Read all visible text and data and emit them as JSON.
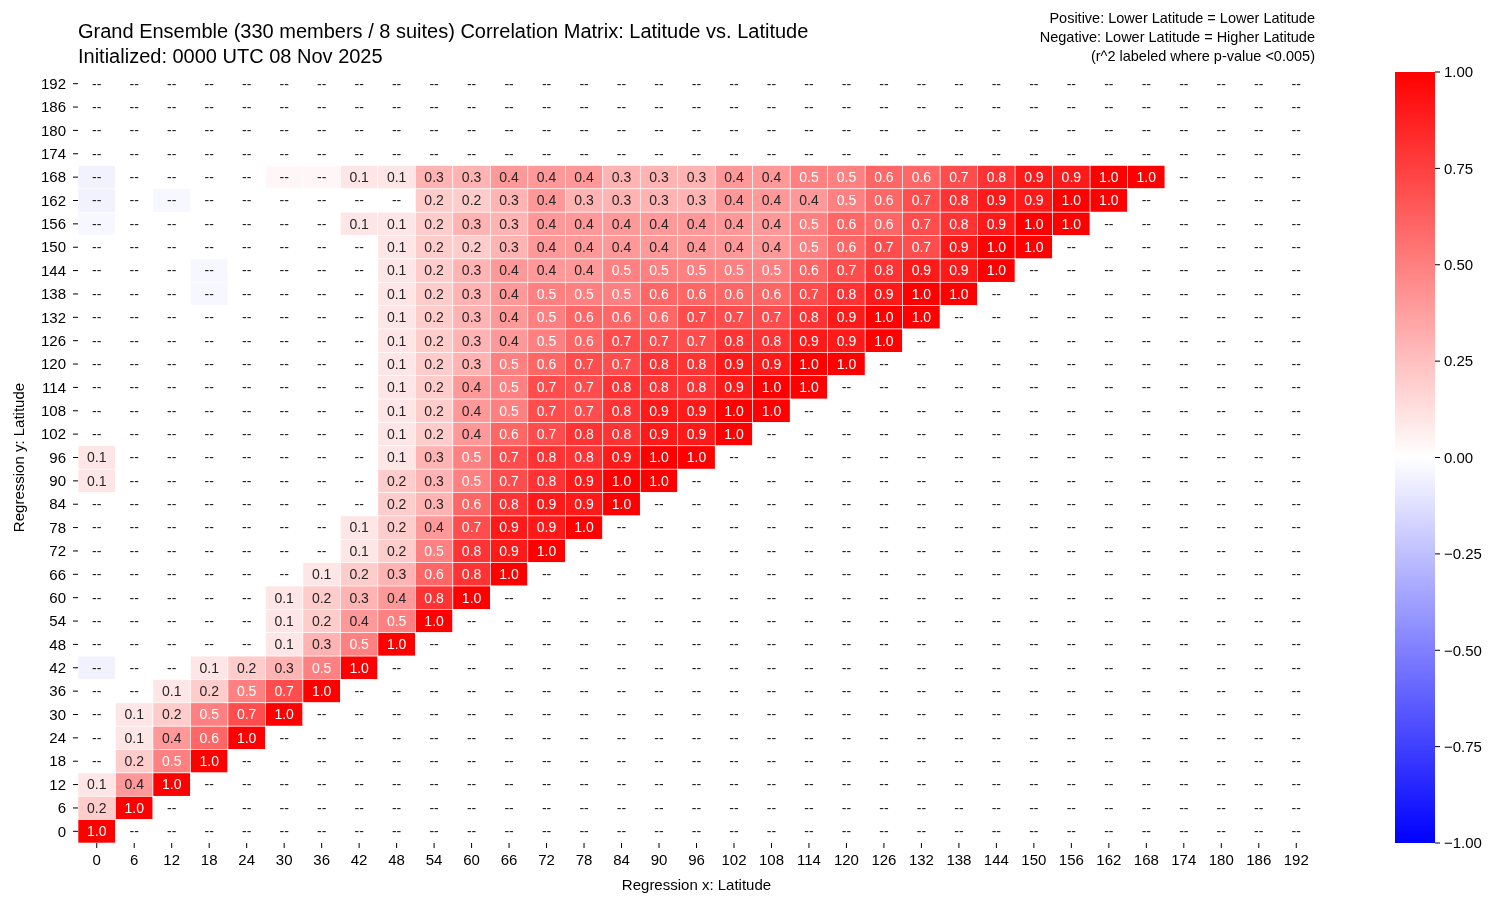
{
  "chart_data": {
    "type": "heatmap",
    "title": "Grand Ensemble (330 members / 8 suites) Correlation Matrix: Latitude vs. Latitude",
    "subtitle": "Initialized: 0000 UTC 08 Nov 2025",
    "annotations": [
      "Positive: Lower Latitude = Lower Latitude",
      "Negative: Lower Latitude = Higher Latitude",
      "(r^2 labeled where p-value <0.005)"
    ],
    "xlabel": "Regression x: Latitude",
    "ylabel": "Regression y: Latitude",
    "categories": [
      "0",
      "6",
      "12",
      "18",
      "24",
      "30",
      "36",
      "42",
      "48",
      "54",
      "60",
      "66",
      "72",
      "78",
      "84",
      "90",
      "96",
      "102",
      "108",
      "114",
      "120",
      "126",
      "132",
      "138",
      "144",
      "150",
      "156",
      "162",
      "168",
      "174",
      "180",
      "186",
      "192"
    ],
    "y_categories": [
      "192",
      "186",
      "180",
      "174",
      "168",
      "162",
      "156",
      "150",
      "144",
      "138",
      "132",
      "126",
      "120",
      "114",
      "108",
      "102",
      "96",
      "90",
      "84",
      "78",
      "72",
      "66",
      "60",
      "54",
      "48",
      "42",
      "36",
      "30",
      "24",
      "18",
      "12",
      "6",
      "0"
    ],
    "clim": [
      -1,
      1
    ],
    "cticks": [
      {
        "value": -1,
        "label": "−1.00"
      },
      {
        "value": -0.75,
        "label": "−0.75"
      },
      {
        "value": -0.5,
        "label": "−0.50"
      },
      {
        "value": -0.25,
        "label": "−0.25"
      },
      {
        "value": 0,
        "label": "0.00"
      },
      {
        "value": 0.25,
        "label": "0.25"
      },
      {
        "value": 0.5,
        "label": "0.50"
      },
      {
        "value": 0.75,
        "label": "0.75"
      },
      {
        "value": 1,
        "label": "1.00"
      }
    ],
    "cells": [
      [
        0,
        0,
        0,
        0,
        0,
        0,
        0,
        0,
        0,
        0,
        0,
        0,
        0,
        0,
        0,
        0,
        0,
        0,
        0,
        0,
        0,
        0,
        0,
        0,
        0,
        0,
        0,
        0,
        0,
        0,
        0,
        0,
        0
      ],
      [
        0,
        0,
        0,
        0,
        0,
        0,
        0,
        0,
        0,
        0,
        0,
        0,
        0,
        0,
        0,
        0,
        0,
        0,
        0,
        0,
        0,
        0,
        0,
        0,
        0,
        0,
        0,
        0,
        0,
        0,
        0,
        0,
        0
      ],
      [
        0,
        0,
        0,
        0,
        0,
        0,
        0,
        0,
        0,
        0,
        0,
        0,
        0,
        0,
        0,
        0,
        0,
        0,
        0,
        0,
        0,
        0,
        0,
        0,
        0,
        0,
        0,
        0,
        0,
        0,
        0,
        0,
        0
      ],
      [
        0,
        0,
        0,
        0,
        0,
        0,
        0,
        0,
        0,
        0,
        0,
        0,
        0,
        0,
        0,
        0,
        0,
        0,
        0,
        0,
        0,
        0,
        0,
        0,
        0,
        0,
        0,
        0,
        0,
        0,
        0,
        0,
        0
      ],
      [
        -0.05,
        0,
        0,
        0,
        0,
        0.03,
        0.03,
        0.1,
        0.1,
        0.3,
        0.3,
        0.4,
        0.4,
        0.4,
        0.3,
        0.3,
        0.3,
        0.4,
        0.4,
        0.5,
        0.5,
        0.6,
        0.6,
        0.7,
        0.8,
        0.9,
        0.9,
        1.0,
        1.0,
        0,
        0,
        0,
        0
      ],
      [
        -0.05,
        0,
        -0.03,
        0,
        0,
        0,
        0,
        0,
        0,
        0.2,
        0.2,
        0.3,
        0.4,
        0.3,
        0.3,
        0.3,
        0.3,
        0.4,
        0.4,
        0.4,
        0.5,
        0.6,
        0.7,
        0.8,
        0.9,
        0.9,
        1.0,
        1.0,
        0,
        0,
        0,
        0,
        0
      ],
      [
        -0.03,
        0,
        0,
        0,
        0,
        0,
        0,
        0.1,
        0.1,
        0.2,
        0.3,
        0.3,
        0.4,
        0.4,
        0.4,
        0.4,
        0.4,
        0.4,
        0.4,
        0.5,
        0.6,
        0.6,
        0.7,
        0.8,
        0.9,
        1.0,
        1.0,
        0,
        0,
        0,
        0,
        0,
        0
      ],
      [
        0,
        0,
        0,
        0,
        0,
        0,
        0,
        0,
        0.1,
        0.2,
        0.2,
        0.3,
        0.4,
        0.4,
        0.4,
        0.4,
        0.4,
        0.4,
        0.4,
        0.5,
        0.6,
        0.7,
        0.7,
        0.9,
        1.0,
        1.0,
        0,
        0,
        0,
        0,
        0,
        0,
        0
      ],
      [
        0,
        0,
        0,
        -0.03,
        0,
        0,
        0,
        0,
        0.1,
        0.2,
        0.3,
        0.4,
        0.4,
        0.4,
        0.5,
        0.5,
        0.5,
        0.5,
        0.5,
        0.6,
        0.7,
        0.8,
        0.9,
        0.9,
        1.0,
        0,
        0,
        0,
        0,
        0,
        0,
        0,
        0
      ],
      [
        0,
        0,
        0,
        -0.03,
        0,
        0,
        0,
        0,
        0.1,
        0.2,
        0.3,
        0.4,
        0.5,
        0.5,
        0.5,
        0.6,
        0.6,
        0.6,
        0.6,
        0.7,
        0.8,
        0.9,
        1.0,
        1.0,
        0,
        0,
        0,
        0,
        0,
        0,
        0,
        0,
        0
      ],
      [
        0,
        0,
        0,
        0,
        0,
        0,
        0,
        0,
        0.1,
        0.2,
        0.3,
        0.4,
        0.5,
        0.6,
        0.6,
        0.6,
        0.7,
        0.7,
        0.7,
        0.8,
        0.9,
        1.0,
        1.0,
        0,
        0,
        0,
        0,
        0,
        0,
        0,
        0,
        0,
        0
      ],
      [
        0,
        0,
        0,
        0,
        0,
        0,
        0,
        0,
        0.1,
        0.2,
        0.3,
        0.4,
        0.5,
        0.6,
        0.7,
        0.7,
        0.7,
        0.8,
        0.8,
        0.9,
        0.9,
        1.0,
        0,
        0,
        0,
        0,
        0,
        0,
        0,
        0,
        0,
        0,
        0
      ],
      [
        0,
        0,
        0,
        0,
        0,
        0,
        0,
        0,
        0.1,
        0.2,
        0.3,
        0.5,
        0.6,
        0.7,
        0.7,
        0.8,
        0.8,
        0.9,
        0.9,
        1.0,
        1.0,
        0,
        0,
        0,
        0,
        0,
        0,
        0,
        0,
        0,
        0,
        0,
        0
      ],
      [
        0,
        0,
        0,
        0,
        0,
        0,
        0,
        0,
        0.1,
        0.2,
        0.4,
        0.5,
        0.7,
        0.7,
        0.8,
        0.8,
        0.8,
        0.9,
        1.0,
        1.0,
        0,
        0,
        0,
        0,
        0,
        0,
        0,
        0,
        0,
        0,
        0,
        0,
        0
      ],
      [
        0,
        0,
        0,
        0,
        0,
        0,
        0,
        0,
        0.1,
        0.2,
        0.4,
        0.5,
        0.7,
        0.7,
        0.8,
        0.9,
        0.9,
        1.0,
        1.0,
        0,
        0,
        0,
        0,
        0,
        0,
        0,
        0,
        0,
        0,
        0,
        0,
        0,
        0
      ],
      [
        0,
        0,
        0,
        0,
        0,
        0,
        0,
        0,
        0.1,
        0.2,
        0.4,
        0.6,
        0.7,
        0.8,
        0.8,
        0.9,
        0.9,
        1.0,
        0,
        0,
        0,
        0,
        0,
        0,
        0,
        0,
        0,
        0,
        0,
        0,
        0,
        0,
        0
      ],
      [
        0.1,
        0,
        0,
        0,
        0,
        0,
        0,
        0,
        0.1,
        0.3,
        0.5,
        0.7,
        0.8,
        0.8,
        0.9,
        1.0,
        1.0,
        0,
        0,
        0,
        0,
        0,
        0,
        0,
        0,
        0,
        0,
        0,
        0,
        0,
        0,
        0,
        0
      ],
      [
        0.1,
        0,
        0,
        0,
        0,
        0,
        0,
        0,
        0.2,
        0.3,
        0.5,
        0.7,
        0.8,
        0.9,
        1.0,
        1.0,
        0,
        0,
        0,
        0,
        0,
        0,
        0,
        0,
        0,
        0,
        0,
        0,
        0,
        0,
        0,
        0,
        0
      ],
      [
        0,
        0,
        0,
        0,
        0,
        0,
        0,
        0,
        0.2,
        0.3,
        0.6,
        0.8,
        0.9,
        0.9,
        1.0,
        0,
        0,
        0,
        0,
        0,
        0,
        0,
        0,
        0,
        0,
        0,
        0,
        0,
        0,
        0,
        0,
        0,
        0
      ],
      [
        0,
        0,
        0,
        0,
        0,
        0,
        0,
        0.1,
        0.2,
        0.4,
        0.7,
        0.9,
        0.9,
        1.0,
        0,
        0,
        0,
        0,
        0,
        0,
        0,
        0,
        0,
        0,
        0,
        0,
        0,
        0,
        0,
        0,
        0,
        0,
        0
      ],
      [
        0,
        0,
        0,
        0,
        0,
        0,
        0,
        0.1,
        0.2,
        0.5,
        0.8,
        0.9,
        1.0,
        0,
        0,
        0,
        0,
        0,
        0,
        0,
        0,
        0,
        0,
        0,
        0,
        0,
        0,
        0,
        0,
        0,
        0,
        0,
        0
      ],
      [
        0,
        0,
        0,
        0,
        0,
        0,
        0.1,
        0.2,
        0.3,
        0.6,
        0.8,
        1.0,
        0,
        0,
        0,
        0,
        0,
        0,
        0,
        0,
        0,
        0,
        0,
        0,
        0,
        0,
        0,
        0,
        0,
        0,
        0,
        0,
        0
      ],
      [
        0,
        0,
        0,
        0,
        0,
        0.1,
        0.2,
        0.3,
        0.4,
        0.8,
        1.0,
        0,
        0,
        0,
        0,
        0,
        0,
        0,
        0,
        0,
        0,
        0,
        0,
        0,
        0,
        0,
        0,
        0,
        0,
        0,
        0,
        0,
        0
      ],
      [
        0,
        0,
        0,
        0,
        0,
        0.1,
        0.2,
        0.4,
        0.5,
        1.0,
        0,
        0,
        0,
        0,
        0,
        0,
        0,
        0,
        0,
        0,
        0,
        0,
        0,
        0,
        0,
        0,
        0,
        0,
        0,
        0,
        0,
        0,
        0
      ],
      [
        0,
        0,
        0,
        0,
        0,
        0.1,
        0.3,
        0.5,
        1.0,
        0,
        0,
        0,
        0,
        0,
        0,
        0,
        0,
        0,
        0,
        0,
        0,
        0,
        0,
        0,
        0,
        0,
        0,
        0,
        0,
        0,
        0,
        0,
        0
      ],
      [
        -0.05,
        0,
        0,
        0.1,
        0.2,
        0.3,
        0.5,
        1.0,
        0,
        0,
        0,
        0,
        0,
        0,
        0,
        0,
        0,
        0,
        0,
        0,
        0,
        0,
        0,
        0,
        0,
        0,
        0,
        0,
        0,
        0,
        0,
        0,
        0
      ],
      [
        0,
        0,
        0.1,
        0.2,
        0.5,
        0.7,
        1.0,
        0,
        0,
        0,
        0,
        0,
        0,
        0,
        0,
        0,
        0,
        0,
        0,
        0,
        0,
        0,
        0,
        0,
        0,
        0,
        0,
        0,
        0,
        0,
        0,
        0,
        0
      ],
      [
        0,
        0.1,
        0.2,
        0.5,
        0.7,
        1.0,
        0,
        0,
        0,
        0,
        0,
        0,
        0,
        0,
        0,
        0,
        0,
        0,
        0,
        0,
        0,
        0,
        0,
        0,
        0,
        0,
        0,
        0,
        0,
        0,
        0,
        0,
        0
      ],
      [
        0,
        0.1,
        0.4,
        0.6,
        1.0,
        0,
        0,
        0,
        0,
        0,
        0,
        0,
        0,
        0,
        0,
        0,
        0,
        0,
        0,
        0,
        0,
        0,
        0,
        0,
        0,
        0,
        0,
        0,
        0,
        0,
        0,
        0,
        0
      ],
      [
        0,
        0.2,
        0.5,
        1.0,
        0,
        0,
        0,
        0,
        0,
        0,
        0,
        0,
        0,
        0,
        0,
        0,
        0,
        0,
        0,
        0,
        0,
        0,
        0,
        0,
        0,
        0,
        0,
        0,
        0,
        0,
        0,
        0,
        0
      ],
      [
        0.1,
        0.4,
        1.0,
        0,
        0,
        0,
        0,
        0,
        0,
        0,
        0,
        0,
        0,
        0,
        0,
        0,
        0,
        0,
        0,
        0,
        0,
        0,
        0,
        0,
        0,
        0,
        0,
        0,
        0,
        0,
        0,
        0,
        0
      ],
      [
        0.2,
        1.0,
        0,
        0,
        0,
        0,
        0,
        0,
        0,
        0,
        0,
        0,
        0,
        0,
        0,
        0,
        0,
        0,
        0,
        0,
        0,
        0,
        0,
        0,
        0,
        0,
        0,
        0,
        0,
        0,
        0,
        0,
        0
      ],
      [
        1.0,
        0,
        0,
        0,
        0,
        0,
        0,
        0,
        0,
        0,
        0,
        0,
        0,
        0,
        0,
        0,
        0,
        0,
        0,
        0,
        0,
        0,
        0,
        0,
        0,
        0,
        0,
        0,
        0,
        0,
        0,
        0,
        0
      ]
    ],
    "cell_labels": [
      [
        "--",
        "--",
        "--",
        "--",
        "--",
        "--",
        "--",
        "--",
        "--",
        "--",
        "--",
        "--",
        "--",
        "--",
        "--",
        "--",
        "--",
        "--",
        "--",
        "--",
        "--",
        "--",
        "--",
        "--",
        "--",
        "--",
        "--",
        "--",
        "--",
        "--",
        "--",
        "--",
        "--"
      ],
      [
        "--",
        "--",
        "--",
        "--",
        "--",
        "--",
        "--",
        "--",
        "--",
        "--",
        "--",
        "--",
        "--",
        "--",
        "--",
        "--",
        "--",
        "--",
        "--",
        "--",
        "--",
        "--",
        "--",
        "--",
        "--",
        "--",
        "--",
        "--",
        "--",
        "--",
        "--",
        "--",
        "--"
      ],
      [
        "--",
        "--",
        "--",
        "--",
        "--",
        "--",
        "--",
        "--",
        "--",
        "--",
        "--",
        "--",
        "--",
        "--",
        "--",
        "--",
        "--",
        "--",
        "--",
        "--",
        "--",
        "--",
        "--",
        "--",
        "--",
        "--",
        "--",
        "--",
        "--",
        "--",
        "--",
        "--",
        "--"
      ],
      [
        "--",
        "--",
        "--",
        "--",
        "--",
        "--",
        "--",
        "--",
        "--",
        "--",
        "--",
        "--",
        "--",
        "--",
        "--",
        "--",
        "--",
        "--",
        "--",
        "--",
        "--",
        "--",
        "--",
        "--",
        "--",
        "--",
        "--",
        "--",
        "--",
        "--",
        "--",
        "--",
        "--"
      ],
      [
        "--",
        "--",
        "--",
        "--",
        "--",
        "--",
        "--",
        "0.1",
        "0.1",
        "0.3",
        "0.3",
        "0.4",
        "0.4",
        "0.4",
        "0.3",
        "0.3",
        "0.3",
        "0.4",
        "0.4",
        "0.5",
        "0.5",
        "0.6",
        "0.6",
        "0.7",
        "0.8",
        "0.9",
        "0.9",
        "1.0",
        "1.0",
        "--",
        "--",
        "--",
        "--"
      ],
      [
        "--",
        "--",
        "--",
        "--",
        "--",
        "--",
        "--",
        "--",
        "--",
        "0.2",
        "0.2",
        "0.3",
        "0.4",
        "0.3",
        "0.3",
        "0.3",
        "0.3",
        "0.4",
        "0.4",
        "0.4",
        "0.5",
        "0.6",
        "0.7",
        "0.8",
        "0.9",
        "0.9",
        "1.0",
        "1.0",
        "--",
        "--",
        "--",
        "--",
        "--"
      ],
      [
        "--",
        "--",
        "--",
        "--",
        "--",
        "--",
        "--",
        "0.1",
        "0.1",
        "0.2",
        "0.3",
        "0.3",
        "0.4",
        "0.4",
        "0.4",
        "0.4",
        "0.4",
        "0.4",
        "0.4",
        "0.5",
        "0.6",
        "0.6",
        "0.7",
        "0.8",
        "0.9",
        "1.0",
        "1.0",
        "--",
        "--",
        "--",
        "--",
        "--",
        "--"
      ],
      [
        "--",
        "--",
        "--",
        "--",
        "--",
        "--",
        "--",
        "--",
        "0.1",
        "0.2",
        "0.2",
        "0.3",
        "0.4",
        "0.4",
        "0.4",
        "0.4",
        "0.4",
        "0.4",
        "0.4",
        "0.5",
        "0.6",
        "0.7",
        "0.7",
        "0.9",
        "1.0",
        "1.0",
        "--",
        "--",
        "--",
        "--",
        "--",
        "--",
        "--"
      ],
      [
        "--",
        "--",
        "--",
        "--",
        "--",
        "--",
        "--",
        "--",
        "0.1",
        "0.2",
        "0.3",
        "0.4",
        "0.4",
        "0.4",
        "0.5",
        "0.5",
        "0.5",
        "0.5",
        "0.5",
        "0.6",
        "0.7",
        "0.8",
        "0.9",
        "0.9",
        "1.0",
        "--",
        "--",
        "--",
        "--",
        "--",
        "--",
        "--",
        "--"
      ],
      [
        "--",
        "--",
        "--",
        "--",
        "--",
        "--",
        "--",
        "--",
        "0.1",
        "0.2",
        "0.3",
        "0.4",
        "0.5",
        "0.5",
        "0.5",
        "0.6",
        "0.6",
        "0.6",
        "0.6",
        "0.7",
        "0.8",
        "0.9",
        "1.0",
        "1.0",
        "--",
        "--",
        "--",
        "--",
        "--",
        "--",
        "--",
        "--",
        "--"
      ],
      [
        "--",
        "--",
        "--",
        "--",
        "--",
        "--",
        "--",
        "--",
        "0.1",
        "0.2",
        "0.3",
        "0.4",
        "0.5",
        "0.6",
        "0.6",
        "0.6",
        "0.7",
        "0.7",
        "0.7",
        "0.8",
        "0.9",
        "1.0",
        "1.0",
        "--",
        "--",
        "--",
        "--",
        "--",
        "--",
        "--",
        "--",
        "--",
        "--"
      ],
      [
        "--",
        "--",
        "--",
        "--",
        "--",
        "--",
        "--",
        "--",
        "0.1",
        "0.2",
        "0.3",
        "0.4",
        "0.5",
        "0.6",
        "0.7",
        "0.7",
        "0.7",
        "0.8",
        "0.8",
        "0.9",
        "0.9",
        "1.0",
        "--",
        "--",
        "--",
        "--",
        "--",
        "--",
        "--",
        "--",
        "--",
        "--",
        "--"
      ],
      [
        "--",
        "--",
        "--",
        "--",
        "--",
        "--",
        "--",
        "--",
        "0.1",
        "0.2",
        "0.3",
        "0.5",
        "0.6",
        "0.7",
        "0.7",
        "0.8",
        "0.8",
        "0.9",
        "0.9",
        "1.0",
        "1.0",
        "--",
        "--",
        "--",
        "--",
        "--",
        "--",
        "--",
        "--",
        "--",
        "--",
        "--",
        "--"
      ],
      [
        "--",
        "--",
        "--",
        "--",
        "--",
        "--",
        "--",
        "--",
        "0.1",
        "0.2",
        "0.4",
        "0.5",
        "0.7",
        "0.7",
        "0.8",
        "0.8",
        "0.8",
        "0.9",
        "1.0",
        "1.0",
        "--",
        "--",
        "--",
        "--",
        "--",
        "--",
        "--",
        "--",
        "--",
        "--",
        "--",
        "--",
        "--"
      ],
      [
        "--",
        "--",
        "--",
        "--",
        "--",
        "--",
        "--",
        "--",
        "0.1",
        "0.2",
        "0.4",
        "0.5",
        "0.7",
        "0.7",
        "0.8",
        "0.9",
        "0.9",
        "1.0",
        "1.0",
        "--",
        "--",
        "--",
        "--",
        "--",
        "--",
        "--",
        "--",
        "--",
        "--",
        "--",
        "--",
        "--",
        "--"
      ],
      [
        "--",
        "--",
        "--",
        "--",
        "--",
        "--",
        "--",
        "--",
        "0.1",
        "0.2",
        "0.4",
        "0.6",
        "0.7",
        "0.8",
        "0.8",
        "0.9",
        "0.9",
        "1.0",
        "--",
        "--",
        "--",
        "--",
        "--",
        "--",
        "--",
        "--",
        "--",
        "--",
        "--",
        "--",
        "--",
        "--",
        "--"
      ],
      [
        "0.1",
        "--",
        "--",
        "--",
        "--",
        "--",
        "--",
        "--",
        "0.1",
        "0.3",
        "0.5",
        "0.7",
        "0.8",
        "0.8",
        "0.9",
        "1.0",
        "1.0",
        "--",
        "--",
        "--",
        "--",
        "--",
        "--",
        "--",
        "--",
        "--",
        "--",
        "--",
        "--",
        "--",
        "--",
        "--",
        "--"
      ],
      [
        "0.1",
        "--",
        "--",
        "--",
        "--",
        "--",
        "--",
        "--",
        "0.2",
        "0.3",
        "0.5",
        "0.7",
        "0.8",
        "0.9",
        "1.0",
        "1.0",
        "--",
        "--",
        "--",
        "--",
        "--",
        "--",
        "--",
        "--",
        "--",
        "--",
        "--",
        "--",
        "--",
        "--",
        "--",
        "--",
        "--"
      ],
      [
        "--",
        "--",
        "--",
        "--",
        "--",
        "--",
        "--",
        "--",
        "0.2",
        "0.3",
        "0.6",
        "0.8",
        "0.9",
        "0.9",
        "1.0",
        "--",
        "--",
        "--",
        "--",
        "--",
        "--",
        "--",
        "--",
        "--",
        "--",
        "--",
        "--",
        "--",
        "--",
        "--",
        "--",
        "--",
        "--"
      ],
      [
        "--",
        "--",
        "--",
        "--",
        "--",
        "--",
        "--",
        "0.1",
        "0.2",
        "0.4",
        "0.7",
        "0.9",
        "0.9",
        "1.0",
        "--",
        "--",
        "--",
        "--",
        "--",
        "--",
        "--",
        "--",
        "--",
        "--",
        "--",
        "--",
        "--",
        "--",
        "--",
        "--",
        "--",
        "--",
        "--"
      ],
      [
        "--",
        "--",
        "--",
        "--",
        "--",
        "--",
        "--",
        "0.1",
        "0.2",
        "0.5",
        "0.8",
        "0.9",
        "1.0",
        "--",
        "--",
        "--",
        "--",
        "--",
        "--",
        "--",
        "--",
        "--",
        "--",
        "--",
        "--",
        "--",
        "--",
        "--",
        "--",
        "--",
        "--",
        "--",
        "--"
      ],
      [
        "--",
        "--",
        "--",
        "--",
        "--",
        "--",
        "0.1",
        "0.2",
        "0.3",
        "0.6",
        "0.8",
        "1.0",
        "--",
        "--",
        "--",
        "--",
        "--",
        "--",
        "--",
        "--",
        "--",
        "--",
        "--",
        "--",
        "--",
        "--",
        "--",
        "--",
        "--",
        "--",
        "--",
        "--",
        "--"
      ],
      [
        "--",
        "--",
        "--",
        "--",
        "--",
        "0.1",
        "0.2",
        "0.3",
        "0.4",
        "0.8",
        "1.0",
        "--",
        "--",
        "--",
        "--",
        "--",
        "--",
        "--",
        "--",
        "--",
        "--",
        "--",
        "--",
        "--",
        "--",
        "--",
        "--",
        "--",
        "--",
        "--",
        "--",
        "--",
        "--"
      ],
      [
        "--",
        "--",
        "--",
        "--",
        "--",
        "0.1",
        "0.2",
        "0.4",
        "0.5",
        "1.0",
        "--",
        "--",
        "--",
        "--",
        "--",
        "--",
        "--",
        "--",
        "--",
        "--",
        "--",
        "--",
        "--",
        "--",
        "--",
        "--",
        "--",
        "--",
        "--",
        "--",
        "--",
        "--",
        "--"
      ],
      [
        "--",
        "--",
        "--",
        "--",
        "--",
        "0.1",
        "0.3",
        "0.5",
        "1.0",
        "--",
        "--",
        "--",
        "--",
        "--",
        "--",
        "--",
        "--",
        "--",
        "--",
        "--",
        "--",
        "--",
        "--",
        "--",
        "--",
        "--",
        "--",
        "--",
        "--",
        "--",
        "--",
        "--",
        "--"
      ],
      [
        "--",
        "--",
        "--",
        "0.1",
        "0.2",
        "0.3",
        "0.5",
        "1.0",
        "--",
        "--",
        "--",
        "--",
        "--",
        "--",
        "--",
        "--",
        "--",
        "--",
        "--",
        "--",
        "--",
        "--",
        "--",
        "--",
        "--",
        "--",
        "--",
        "--",
        "--",
        "--",
        "--",
        "--",
        "--"
      ],
      [
        "--",
        "--",
        "0.1",
        "0.2",
        "0.5",
        "0.7",
        "1.0",
        "--",
        "--",
        "--",
        "--",
        "--",
        "--",
        "--",
        "--",
        "--",
        "--",
        "--",
        "--",
        "--",
        "--",
        "--",
        "--",
        "--",
        "--",
        "--",
        "--",
        "--",
        "--",
        "--",
        "--",
        "--",
        "--"
      ],
      [
        "--",
        "0.1",
        "0.2",
        "0.5",
        "0.7",
        "1.0",
        "--",
        "--",
        "--",
        "--",
        "--",
        "--",
        "--",
        "--",
        "--",
        "--",
        "--",
        "--",
        "--",
        "--",
        "--",
        "--",
        "--",
        "--",
        "--",
        "--",
        "--",
        "--",
        "--",
        "--",
        "--",
        "--",
        "--"
      ],
      [
        "--",
        "0.1",
        "0.4",
        "0.6",
        "1.0",
        "--",
        "--",
        "--",
        "--",
        "--",
        "--",
        "--",
        "--",
        "--",
        "--",
        "--",
        "--",
        "--",
        "--",
        "--",
        "--",
        "--",
        "--",
        "--",
        "--",
        "--",
        "--",
        "--",
        "--",
        "--",
        "--",
        "--",
        "--"
      ],
      [
        "--",
        "0.2",
        "0.5",
        "1.0",
        "--",
        "--",
        "--",
        "--",
        "--",
        "--",
        "--",
        "--",
        "--",
        "--",
        "--",
        "--",
        "--",
        "--",
        "--",
        "--",
        "--",
        "--",
        "--",
        "--",
        "--",
        "--",
        "--",
        "--",
        "--",
        "--",
        "--",
        "--",
        "--"
      ],
      [
        "0.1",
        "0.4",
        "1.0",
        "--",
        "--",
        "--",
        "--",
        "--",
        "--",
        "--",
        "--",
        "--",
        "--",
        "--",
        "--",
        "--",
        "--",
        "--",
        "--",
        "--",
        "--",
        "--",
        "--",
        "--",
        "--",
        "--",
        "--",
        "--",
        "--",
        "--",
        "--",
        "--",
        "--"
      ],
      [
        "0.2",
        "1.0",
        "--",
        "--",
        "--",
        "--",
        "--",
        "--",
        "--",
        "--",
        "--",
        "--",
        "--",
        "--",
        "--",
        "--",
        "--",
        "--",
        "--",
        "--",
        "--",
        "--",
        "--",
        "--",
        "--",
        "--",
        "--",
        "--",
        "--",
        "--",
        "--",
        "--",
        "--"
      ],
      [
        "1.0",
        "--",
        "--",
        "--",
        "--",
        "--",
        "--",
        "--",
        "--",
        "--",
        "--",
        "--",
        "--",
        "--",
        "--",
        "--",
        "--",
        "--",
        "--",
        "--",
        "--",
        "--",
        "--",
        "--",
        "--",
        "--",
        "--",
        "--",
        "--",
        "--",
        "--",
        "--",
        "--"
      ]
    ]
  }
}
